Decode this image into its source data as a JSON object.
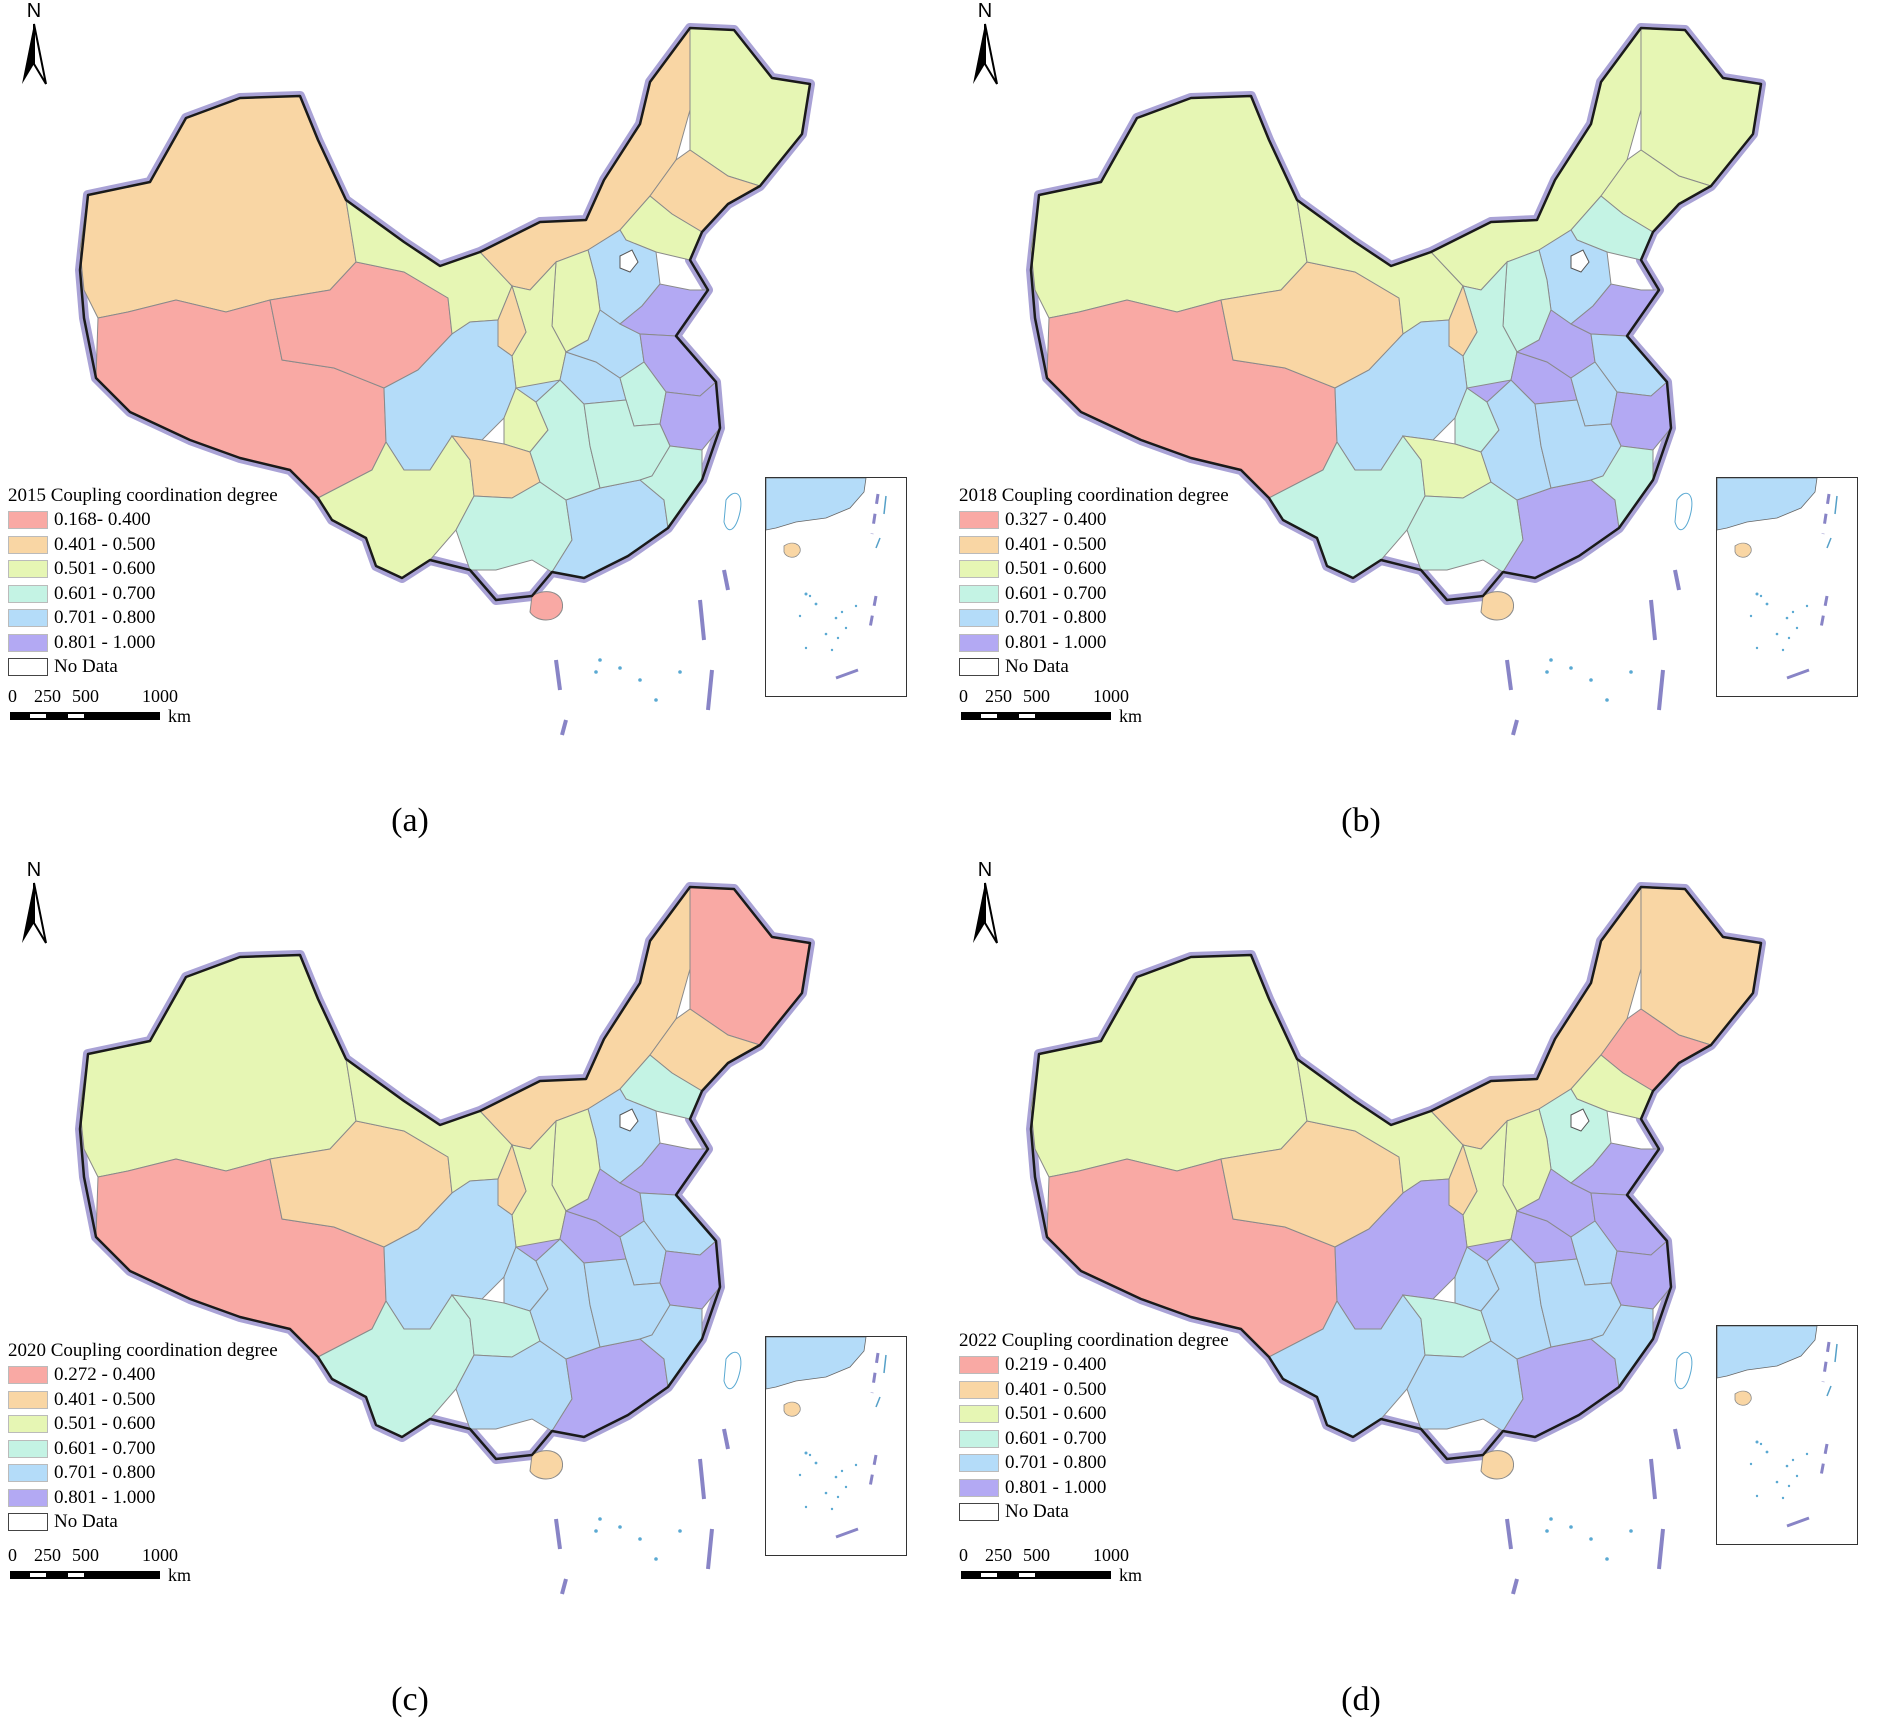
{
  "colors": {
    "c1": "#f9a9a4",
    "c2": "#f9d6a4",
    "c3": "#e6f6b4",
    "c4": "#c4f3e4",
    "c5": "#b4dcf9",
    "c6": "#b3a9f3",
    "nodata": "#ffffff",
    "border": "#1a1a1a",
    "halo": "#a9a2d6"
  },
  "north_label": "N",
  "scale": {
    "tick_0": "0",
    "tick_250": "250",
    "tick_500": "500",
    "tick_1000": "1000",
    "unit": "km"
  },
  "no_data_label": "No Data",
  "panels": [
    {
      "caption": "(a)",
      "legend_title": "2015 Coupling coordination degree",
      "legend": [
        "0.168- 0.400",
        "0.401 - 0.500",
        "0.501 - 0.600",
        "0.601 - 0.700",
        "0.701 - 0.800",
        "0.801 - 1.000"
      ],
      "region_classes": {
        "xinjiang": 2,
        "tibet": 1,
        "qinghai": 1,
        "gansu": 3,
        "innermongolia": 2,
        "heilongjiang": 3,
        "jilin": 2,
        "liaoning": 3,
        "hebei": 5,
        "shanxi": 3,
        "shaanxi": 3,
        "ningxia": 2,
        "sichuan": 5,
        "chongqing": 3,
        "yunnan": 3,
        "guizhou": 2,
        "guangxi": 4,
        "guangdong": 5,
        "hunan": 4,
        "hubei": 5,
        "henan": 5,
        "shandong": 6,
        "jiangsu": 6,
        "zhejiang": 6,
        "anhui": 4,
        "jiangxi": 4,
        "fujian": 4,
        "hainan": 1,
        "taiwan": 0
      }
    },
    {
      "caption": "(b)",
      "legend_title": "2018 Coupling coordination degree",
      "legend": [
        "0.327 - 0.400",
        "0.401 - 0.500",
        "0.501 - 0.600",
        "0.601 - 0.700",
        "0.701 - 0.800",
        "0.801 - 1.000"
      ],
      "region_classes": {
        "xinjiang": 3,
        "tibet": 1,
        "qinghai": 2,
        "gansu": 3,
        "innermongolia": 3,
        "heilongjiang": 3,
        "jilin": 3,
        "liaoning": 4,
        "hebei": 5,
        "shanxi": 4,
        "shaanxi": 4,
        "ningxia": 2,
        "sichuan": 5,
        "chongqing": 4,
        "yunnan": 4,
        "guizhou": 3,
        "guangxi": 4,
        "guangdong": 6,
        "hunan": 5,
        "hubei": 6,
        "henan": 6,
        "shandong": 6,
        "jiangsu": 5,
        "zhejiang": 6,
        "anhui": 5,
        "jiangxi": 5,
        "fujian": 4,
        "hainan": 2,
        "taiwan": 0
      }
    },
    {
      "caption": "(c)",
      "legend_title": "2020 Coupling coordination degree",
      "legend": [
        "0.272 - 0.400",
        "0.401 - 0.500",
        "0.501 - 0.600",
        "0.601 - 0.700",
        "0.701 - 0.800",
        "0.801 - 1.000"
      ],
      "region_classes": {
        "xinjiang": 3,
        "tibet": 1,
        "qinghai": 2,
        "gansu": 3,
        "innermongolia": 2,
        "heilongjiang": 1,
        "jilin": 2,
        "liaoning": 4,
        "hebei": 5,
        "shanxi": 3,
        "shaanxi": 3,
        "ningxia": 2,
        "sichuan": 5,
        "chongqing": 5,
        "yunnan": 4,
        "guizhou": 4,
        "guangxi": 5,
        "guangdong": 6,
        "hunan": 5,
        "hubei": 6,
        "henan": 6,
        "shandong": 6,
        "jiangsu": 5,
        "zhejiang": 6,
        "anhui": 5,
        "jiangxi": 5,
        "fujian": 5,
        "hainan": 2,
        "taiwan": 0
      }
    },
    {
      "caption": "(d)",
      "legend_title": "2022 Coupling coordination degree",
      "legend": [
        "0.219 - 0.400",
        "0.401 - 0.500",
        "0.501 - 0.600",
        "0.601 - 0.700",
        "0.701 - 0.800",
        "0.801 - 1.000"
      ],
      "region_classes": {
        "xinjiang": 3,
        "tibet": 1,
        "qinghai": 2,
        "gansu": 3,
        "innermongolia": 2,
        "heilongjiang": 2,
        "jilin": 1,
        "liaoning": 3,
        "hebei": 4,
        "shanxi": 3,
        "shaanxi": 3,
        "ningxia": 2,
        "sichuan": 6,
        "chongqing": 5,
        "yunnan": 5,
        "guizhou": 4,
        "guangxi": 5,
        "guangdong": 6,
        "hunan": 5,
        "hubei": 6,
        "henan": 6,
        "shandong": 6,
        "jiangsu": 6,
        "zhejiang": 6,
        "anhui": 5,
        "jiangxi": 5,
        "fujian": 5,
        "hainan": 2,
        "taiwan": 0
      }
    }
  ]
}
